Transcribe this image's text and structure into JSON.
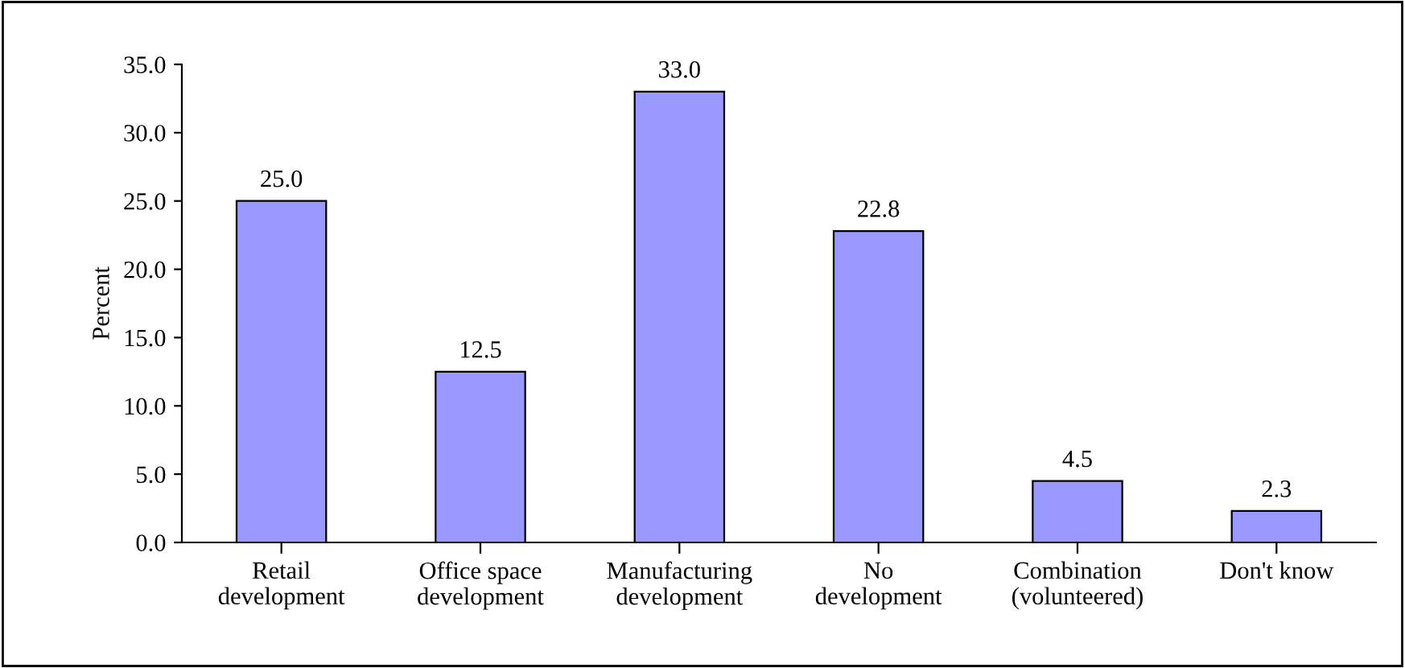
{
  "chart_data": {
    "type": "bar",
    "ylabel": "Percent",
    "categories": [
      "Retail\ndevelopment",
      "Office space\ndevelopment",
      "Manufacturing\ndevelopment",
      "No\ndevelopment",
      "Combination\n(volunteered)",
      "Don't know"
    ],
    "values": [
      25.0,
      12.5,
      33.0,
      22.8,
      4.5,
      2.3
    ],
    "value_labels": [
      "25.0",
      "12.5",
      "33.0",
      "22.8",
      "4.5",
      "2.3"
    ],
    "color": "#9999ff",
    "ylim": [
      0,
      35
    ],
    "yticks": [
      {
        "value": 0,
        "label": "0.0"
      },
      {
        "value": 5,
        "label": "5.0"
      },
      {
        "value": 10,
        "label": "10.0"
      },
      {
        "value": 15,
        "label": "15.0"
      },
      {
        "value": 20,
        "label": "20.0"
      },
      {
        "value": 25,
        "label": "25.0"
      },
      {
        "value": 30,
        "label": "30.0"
      },
      {
        "value": 35,
        "label": "35.0"
      }
    ],
    "grid": false,
    "legend": false
  }
}
